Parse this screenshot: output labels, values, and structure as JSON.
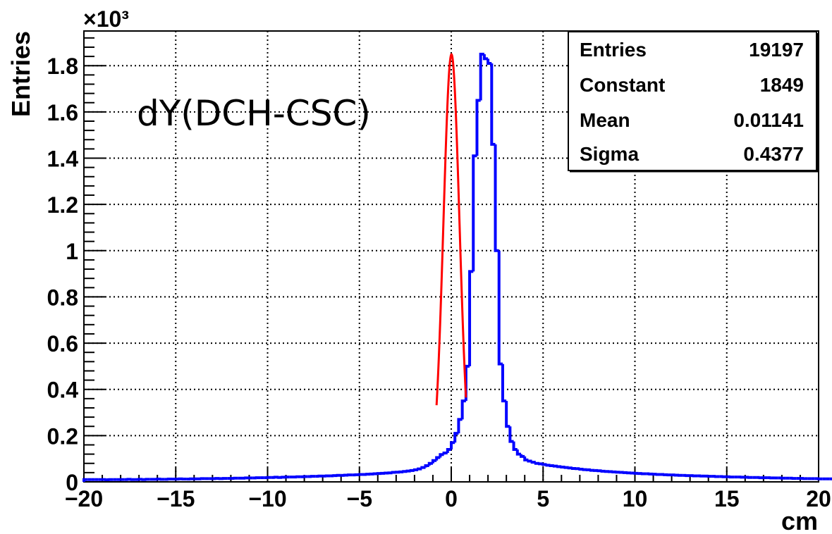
{
  "chart_data": {
    "type": "histogram",
    "title": "",
    "xlabel": "cm",
    "ylabel": "Entries",
    "y_multiplier_label": "×10³",
    "xlim": [
      -20,
      20
    ],
    "ylim": [
      0,
      1.95
    ],
    "y_scale_factor": 1000,
    "x_ticks": [
      -20,
      -15,
      -10,
      -5,
      0,
      5,
      10,
      15,
      20
    ],
    "x_tick_labels": [
      "−20",
      "−15",
      "−10",
      "−5",
      "0",
      "5",
      "10",
      "15",
      "20"
    ],
    "y_ticks": [
      0,
      0.2,
      0.4,
      0.6,
      0.8,
      1,
      1.2,
      1.4,
      1.6,
      1.8
    ],
    "y_tick_labels": [
      "0",
      "0.2",
      "0.4",
      "0.6",
      "0.8",
      "1",
      "1.2",
      "1.4",
      "1.6",
      "1.8"
    ],
    "grid": true,
    "annotation": "dY(DCH-CSC)",
    "stats": [
      {
        "label": "Entries",
        "value": "19197"
      },
      {
        "label": "Constant",
        "value": "1849"
      },
      {
        "label": "Mean",
        "value": "0.01141"
      },
      {
        "label": "Sigma",
        "value": "0.4377"
      }
    ],
    "histogram": {
      "color": "#0000ff",
      "bin_low": -20,
      "bin_width": 0.2,
      "values": [
        0.01,
        0.01,
        0.01,
        0.01,
        0.01,
        0.01,
        0.009,
        0.01,
        0.01,
        0.01,
        0.01,
        0.01,
        0.011,
        0.01,
        0.01,
        0.011,
        0.01,
        0.011,
        0.011,
        0.011,
        0.012,
        0.011,
        0.011,
        0.012,
        0.012,
        0.012,
        0.013,
        0.012,
        0.012,
        0.013,
        0.013,
        0.013,
        0.014,
        0.014,
        0.014,
        0.014,
        0.015,
        0.014,
        0.015,
        0.015,
        0.015,
        0.016,
        0.016,
        0.016,
        0.017,
        0.017,
        0.017,
        0.018,
        0.018,
        0.018,
        0.019,
        0.019,
        0.02,
        0.019,
        0.02,
        0.021,
        0.021,
        0.021,
        0.022,
        0.022,
        0.023,
        0.023,
        0.024,
        0.024,
        0.025,
        0.025,
        0.026,
        0.026,
        0.027,
        0.028,
        0.028,
        0.029,
        0.03,
        0.03,
        0.031,
        0.032,
        0.032,
        0.033,
        0.034,
        0.035,
        0.036,
        0.037,
        0.038,
        0.039,
        0.041,
        0.042,
        0.043,
        0.045,
        0.047,
        0.049,
        0.052,
        0.056,
        0.062,
        0.07,
        0.08,
        0.092,
        0.105,
        0.118,
        0.125,
        0.14,
        0.17,
        0.21,
        0.27,
        0.35,
        0.5,
        0.91,
        1.41,
        1.65,
        1.85,
        1.83,
        1.81,
        1.46,
        1.0,
        0.51,
        0.35,
        0.24,
        0.175,
        0.14,
        0.12,
        0.11,
        0.095,
        0.09,
        0.085,
        0.08,
        0.078,
        0.075,
        0.072,
        0.07,
        0.068,
        0.066,
        0.064,
        0.062,
        0.06,
        0.058,
        0.057,
        0.055,
        0.053,
        0.052,
        0.05,
        0.049,
        0.048,
        0.046,
        0.045,
        0.044,
        0.043,
        0.042,
        0.041,
        0.04,
        0.039,
        0.038,
        0.037,
        0.036,
        0.035,
        0.035,
        0.034,
        0.033,
        0.032,
        0.032,
        0.031,
        0.03,
        0.03,
        0.029,
        0.028,
        0.028,
        0.027,
        0.027,
        0.026,
        0.026,
        0.025,
        0.025,
        0.024,
        0.024,
        0.023,
        0.023,
        0.022,
        0.022,
        0.021,
        0.021,
        0.021,
        0.02,
        0.02,
        0.019,
        0.019,
        0.019,
        0.018,
        0.018,
        0.018,
        0.017,
        0.017,
        0.017,
        0.016,
        0.016,
        0.016,
        0.015,
        0.015,
        0.015,
        0.014,
        0.014,
        0.014,
        0.014,
        0.013,
        0.013,
        0.013,
        0.013,
        0.012,
        0.012,
        0.012
      ]
    },
    "fit": {
      "type": "gaussian",
      "color": "#ff0000",
      "constant": 1849,
      "mean": 0.01141,
      "sigma": 0.4377,
      "range": [
        -0.8,
        0.8
      ]
    }
  }
}
